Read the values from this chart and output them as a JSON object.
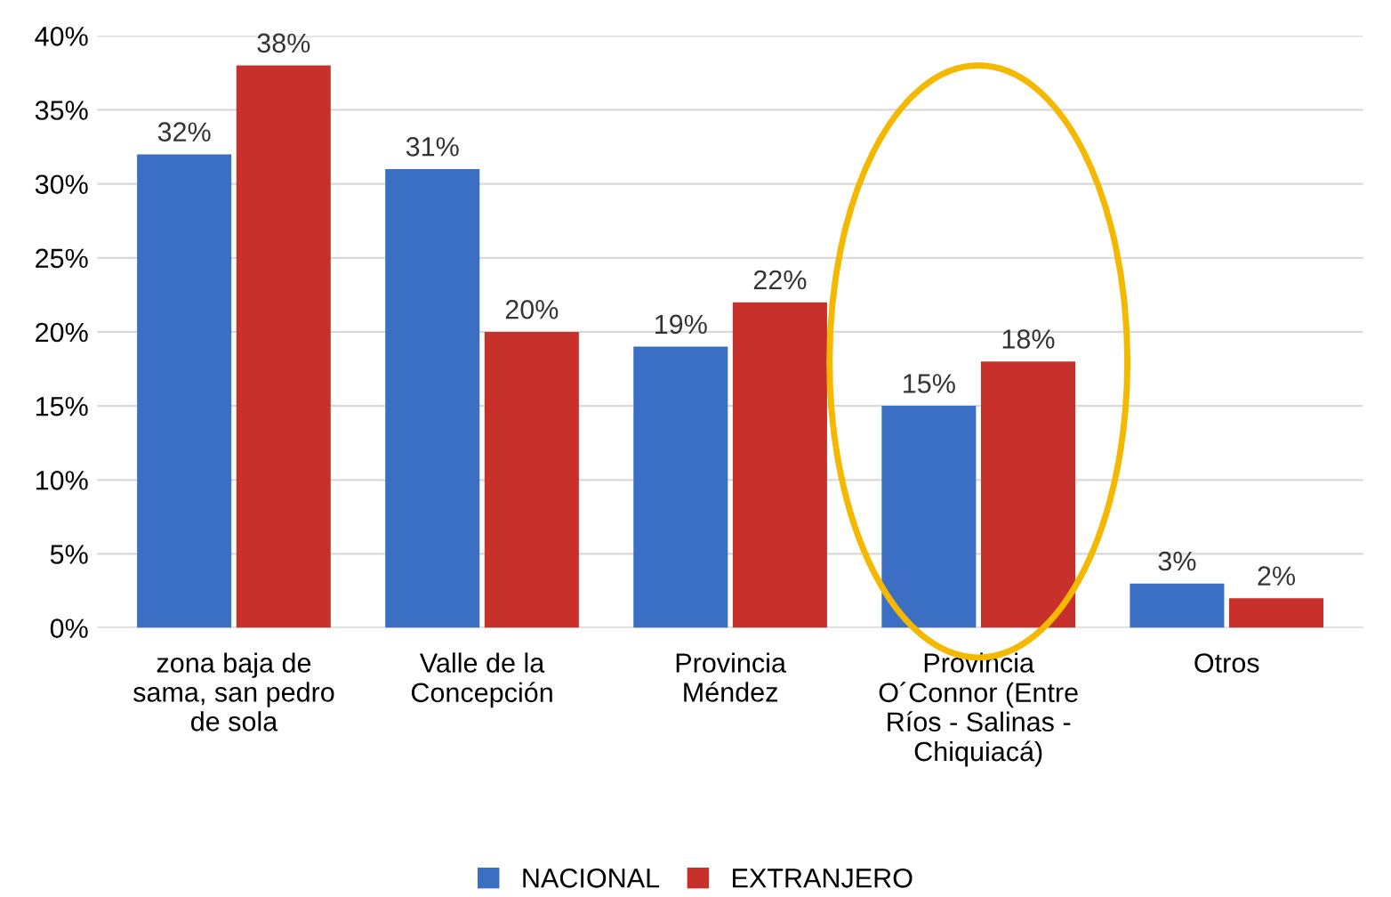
{
  "chart_data": {
    "type": "bar",
    "categories": [
      "zona baja de\nsama, san pedro\nde sola",
      "Valle de la\nConcepción",
      "Provincia\nMéndez",
      "Provincia\nO´Connor (Entre\nRíos - Salinas -\nChiquiacá)",
      "Otros"
    ],
    "series": [
      {
        "name": "NACIONAL",
        "color": "#3a6fc4",
        "values": [
          32,
          31,
          19,
          15,
          3
        ],
        "value_labels": [
          "32%",
          "31%",
          "19%",
          "15%",
          "3%"
        ]
      },
      {
        "name": "EXTRANJERO",
        "color": "#c8302c",
        "values": [
          38,
          20,
          22,
          18,
          2
        ],
        "value_labels": [
          "38%",
          "20%",
          "22%",
          "18%",
          "2%"
        ]
      }
    ],
    "ylim": [
      0,
      40
    ],
    "yticks": [
      {
        "value": 0,
        "label": "0%"
      },
      {
        "value": 5,
        "label": "5%"
      },
      {
        "value": 10,
        "label": "10%"
      },
      {
        "value": 15,
        "label": "15%"
      },
      {
        "value": 20,
        "label": "20%"
      },
      {
        "value": 25,
        "label": "25%"
      },
      {
        "value": 30,
        "label": "30%"
      },
      {
        "value": 35,
        "label": "35%"
      },
      {
        "value": 40,
        "label": "40%"
      }
    ],
    "grid": "y",
    "legend": "bottom"
  }
}
